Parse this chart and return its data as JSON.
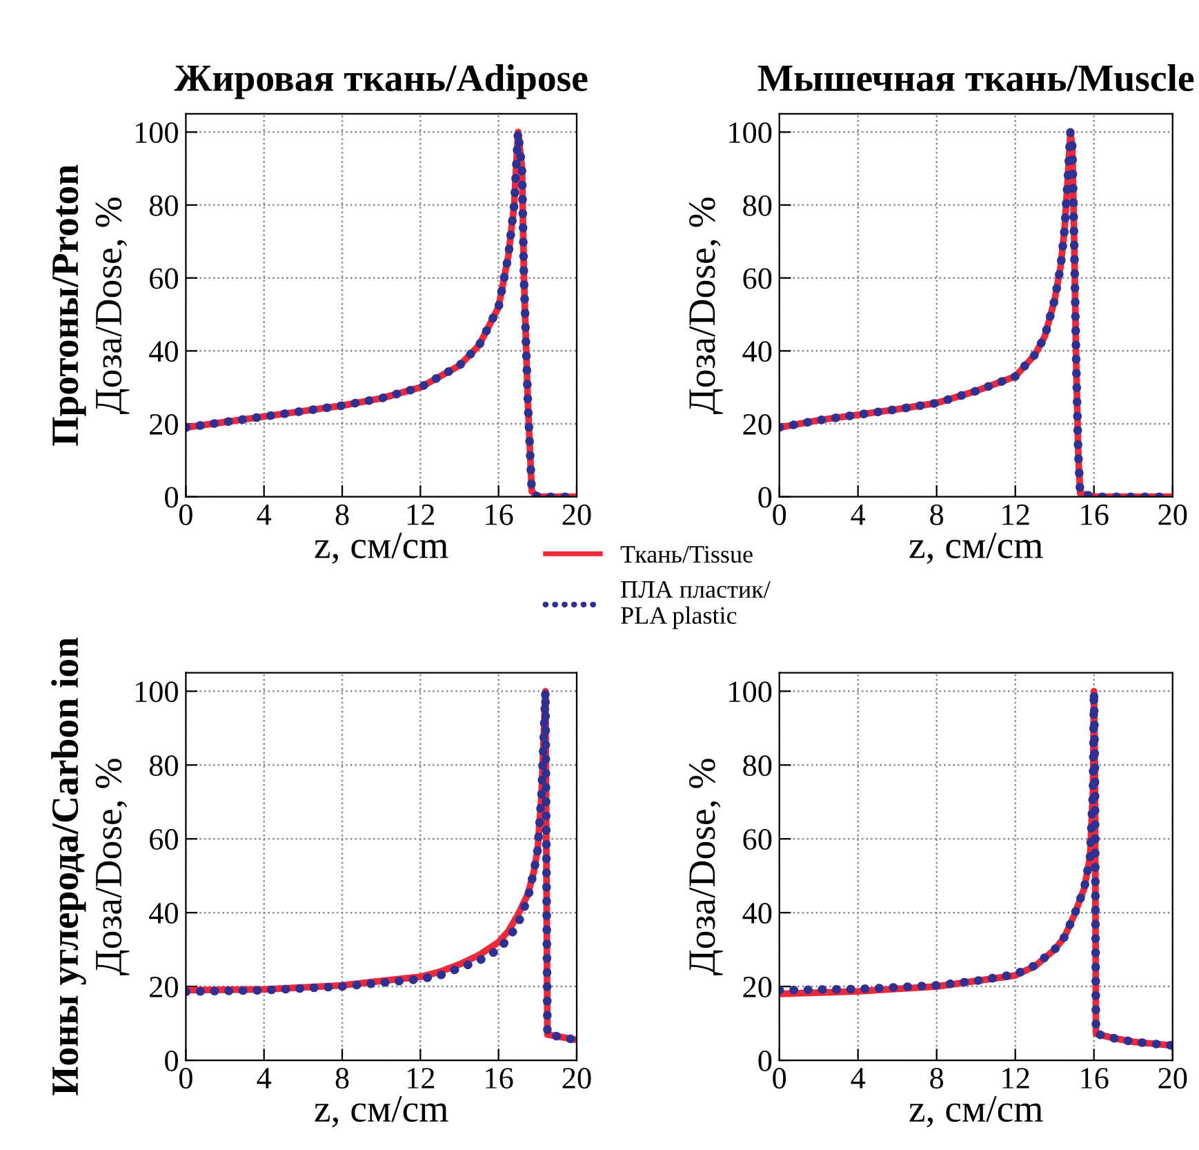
{
  "chart_data": [
    {
      "type": "line",
      "title": "Жировая ткань/Adipose",
      "xlabel": "z, см/cm",
      "ylabel": "Доза/Dose, %",
      "annotations": [
        "Протоны/Proton"
      ],
      "xlim": [
        0,
        20
      ],
      "ylim": [
        0,
        105
      ],
      "xticks": [
        0,
        4,
        8,
        12,
        16,
        20
      ],
      "yticks": [
        0,
        20,
        40,
        60,
        80,
        100
      ],
      "grid": true,
      "series": [
        {
          "color": "#ee2a3a",
          "line_style": "solid",
          "x": [
            0,
            2,
            4,
            6,
            8,
            10,
            12,
            14,
            15,
            16,
            16.5,
            16.8,
            17.0,
            17.2,
            17.3,
            17.5,
            17.7,
            18,
            20
          ],
          "values": [
            19,
            20.5,
            22,
            23.5,
            25,
            27,
            30,
            36,
            41.5,
            52,
            66,
            80,
            100,
            90,
            60,
            26,
            1.5,
            0,
            0
          ]
        },
        {
          "color": "#2e3192",
          "line_style": "dotted",
          "x": [
            0,
            2,
            4,
            6,
            8,
            10,
            12,
            14,
            15,
            16,
            16.5,
            16.8,
            17.0,
            17.2,
            17.3,
            17.5,
            17.7,
            18,
            20
          ],
          "values": [
            19,
            20.5,
            22,
            23.5,
            25,
            27,
            30,
            36,
            41.5,
            52,
            66,
            80,
            100,
            90,
            60,
            26,
            1.5,
            0,
            0
          ]
        }
      ]
    },
    {
      "type": "line",
      "title": "Мышечная ткань/Muscle",
      "xlabel": "z, см/cm",
      "ylabel": "Доза/Dose, %",
      "xlim": [
        0,
        20
      ],
      "ylim": [
        0,
        105
      ],
      "xticks": [
        0,
        4,
        8,
        12,
        16,
        20
      ],
      "yticks": [
        0,
        20,
        40,
        60,
        80,
        100
      ],
      "grid": true,
      "legend": "bottom left",
      "series": [
        {
          "name": "Ткань/Tissue",
          "color": "#ee2a3a",
          "line_style": "solid",
          "x": [
            0,
            2,
            4,
            6,
            8,
            10,
            12,
            13,
            13.5,
            14,
            14.3,
            14.5,
            14.7,
            14.8,
            14.9,
            15.0,
            15.1,
            15.2,
            15.3,
            16,
            20
          ],
          "values": [
            19,
            21,
            22.5,
            24,
            25.7,
            29,
            33,
            39,
            44,
            54,
            63,
            73,
            90,
            100,
            96,
            68,
            36,
            12,
            1,
            0,
            0
          ]
        },
        {
          "name": "ПЛА пластик/\nPLA plastic",
          "color": "#2e3192",
          "line_style": "dotted",
          "x": [
            0,
            2,
            4,
            6,
            8,
            10,
            12,
            13,
            13.5,
            14,
            14.3,
            14.5,
            14.7,
            14.8,
            14.9,
            15.0,
            15.1,
            15.2,
            15.3,
            16,
            20
          ],
          "values": [
            19,
            21,
            22.5,
            24,
            25.7,
            29,
            33,
            39,
            44,
            54,
            63,
            73,
            90,
            100,
            96,
            68,
            36,
            12,
            1,
            0,
            0
          ]
        }
      ]
    },
    {
      "type": "line",
      "xlabel": "z, см/cm",
      "ylabel": "Доза/Dose, %",
      "annotations": [
        "Ионы углерода/Carbon ion"
      ],
      "xlim": [
        0,
        20
      ],
      "ylim": [
        0,
        105
      ],
      "xticks": [
        0,
        4,
        8,
        12,
        16,
        20
      ],
      "yticks": [
        0,
        20,
        40,
        60,
        80,
        100
      ],
      "grid": true,
      "series": [
        {
          "color": "#ee2a3a",
          "line_style": "solid",
          "x": [
            0,
            4,
            8,
            10,
            12,
            13,
            14,
            15,
            16,
            16.5,
            17,
            17.5,
            17.8,
            18.0,
            18.2,
            18.4,
            18.5,
            19,
            20
          ],
          "values": [
            19,
            19.2,
            20.3,
            21.5,
            22.6,
            24,
            26,
            28.5,
            32,
            35,
            39.5,
            45,
            51,
            57,
            72,
            100,
            7,
            6.5,
            5.5
          ]
        },
        {
          "color": "#2e3192",
          "line_style": "dotted",
          "x": [
            0,
            4,
            8,
            10,
            12,
            13,
            14,
            15,
            16,
            16.5,
            17,
            17.5,
            17.8,
            18.0,
            18.2,
            18.4,
            18.5,
            19,
            20
          ],
          "values": [
            18.6,
            19,
            20,
            21,
            22,
            23,
            25,
            27,
            30,
            33,
            37,
            44,
            51,
            57,
            72,
            100,
            7,
            6.5,
            5.5
          ]
        }
      ]
    },
    {
      "type": "line",
      "xlabel": "z, см/cm",
      "ylabel": "Доза/Dose, %",
      "xlim": [
        0,
        20
      ],
      "ylim": [
        0,
        105
      ],
      "xticks": [
        0,
        4,
        8,
        12,
        16,
        20
      ],
      "yticks": [
        0,
        20,
        40,
        60,
        80,
        100
      ],
      "grid": true,
      "series": [
        {
          "color": "#ee2a3a",
          "line_style": "solid",
          "x": [
            0,
            4,
            8,
            10,
            12,
            13,
            14,
            14.5,
            15,
            15.5,
            15.8,
            15.95,
            16.0,
            16.05,
            16.1,
            17,
            18,
            19,
            20
          ],
          "values": [
            18,
            18.7,
            20,
            21.5,
            23,
            25.5,
            30,
            33.4,
            39.4,
            46.5,
            55,
            73,
            100,
            79,
            7.2,
            6,
            5,
            4.5,
            4
          ]
        },
        {
          "color": "#2e3192",
          "line_style": "dotted",
          "x": [
            0,
            4,
            8,
            10,
            12,
            13,
            14,
            14.5,
            15,
            15.5,
            15.8,
            15.95,
            16.0,
            16.05,
            16.1,
            17,
            18,
            19,
            20
          ],
          "values": [
            19,
            19.3,
            20.3,
            21.5,
            23.3,
            25.7,
            30,
            33.4,
            39.4,
            46.5,
            55,
            73,
            100,
            79,
            7.2,
            6,
            5,
            4.5,
            4
          ]
        }
      ]
    }
  ]
}
